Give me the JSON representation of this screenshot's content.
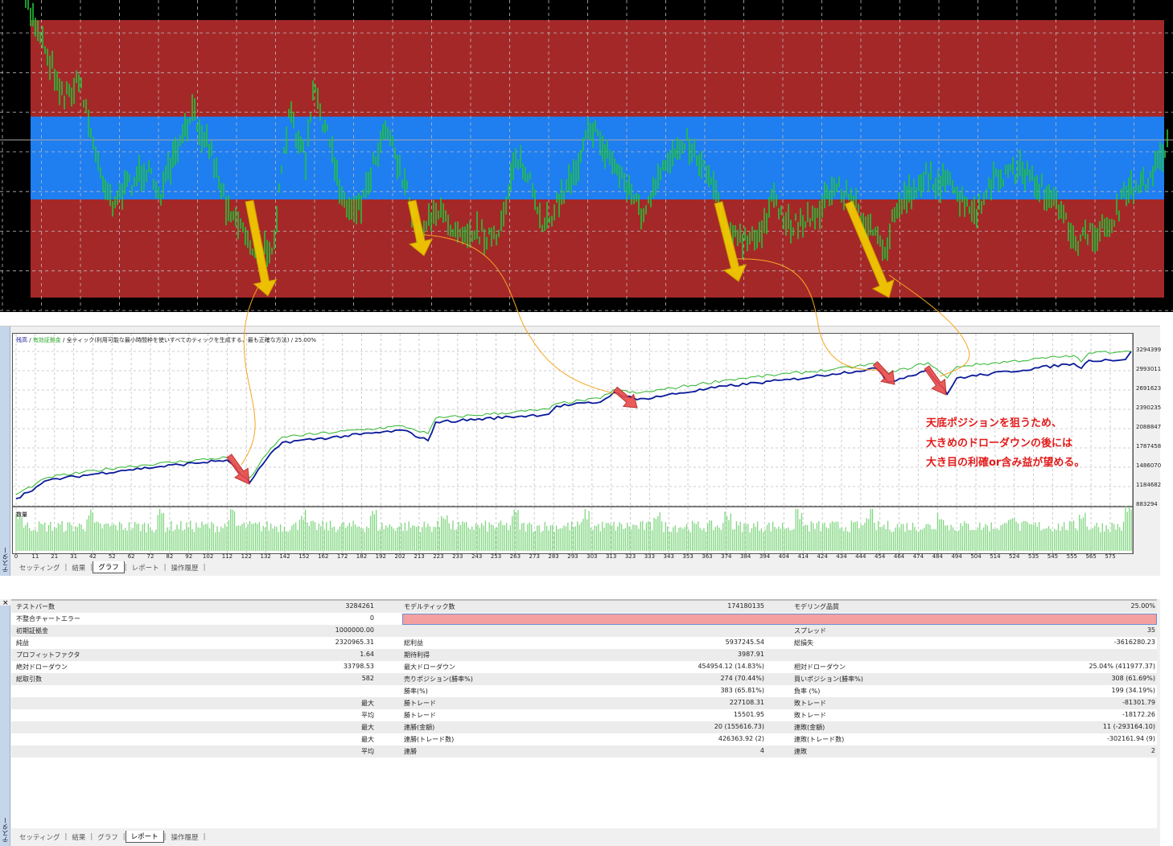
{
  "colors": {
    "price_bg": "#000000",
    "zone_red": "#a52828",
    "zone_blue": "#1f7ef0",
    "price_bars": "#22c43a",
    "balance_line": "#0a1a9a",
    "equity_line": "#2db52d",
    "volume_bars": "#7fd67f",
    "annotation_arrow": "#e03030",
    "annotation_highlight": "#f5d000",
    "connector": "#f5a623",
    "note_text": "#e21a1a"
  },
  "graph_panel": {
    "legend": {
      "balance": "残高",
      "sep1": " / ",
      "equity": "有効証拠金",
      "sep2": " / ",
      "model": "全ティック(利用可能な最小時間枠を使いすべてのティックを生成する、最も正確な方法)",
      "sep3": " / ",
      "quality": "25.00%"
    },
    "volume_label": "数量",
    "side_label": "テスター",
    "tabs": [
      {
        "label": "セッティング",
        "active": false
      },
      {
        "label": "結果",
        "active": false
      },
      {
        "label": "グラフ",
        "active": true
      },
      {
        "label": "レポート",
        "active": false
      },
      {
        "label": "操作履歴",
        "active": false
      }
    ]
  },
  "chart_data": {
    "type": "line",
    "xlabel": "",
    "ylabel": "",
    "ylim": [
      883294,
      3294399
    ],
    "xlim": [
      0,
      582
    ],
    "grid": true,
    "legend": "top-left",
    "y_ticks": [
      "3294399",
      "2993011",
      "2691623",
      "2390235",
      "2088847",
      "1787458",
      "1486070",
      "1184682",
      "883294"
    ],
    "x_ticks": [
      "0",
      "11",
      "21",
      "31",
      "42",
      "52",
      "62",
      "72",
      "82",
      "92",
      "102",
      "112",
      "122",
      "132",
      "142",
      "152",
      "162",
      "172",
      "182",
      "192",
      "202",
      "213",
      "223",
      "233",
      "243",
      "253",
      "263",
      "273",
      "283",
      "293",
      "303",
      "313",
      "323",
      "333",
      "343",
      "353",
      "363",
      "374",
      "384",
      "394",
      "404",
      "414",
      "424",
      "434",
      "444",
      "454",
      "464",
      "474",
      "484",
      "494",
      "504",
      "514",
      "524",
      "535",
      "545",
      "555",
      "565",
      "575"
    ],
    "series": [
      {
        "name": "残高",
        "points": [
          [
            0,
            996000
          ],
          [
            17,
            1285000
          ],
          [
            55,
            1436000
          ],
          [
            110,
            1599000
          ],
          [
            122,
            1247000
          ],
          [
            131,
            1624000
          ],
          [
            139,
            1875000
          ],
          [
            202,
            2064000
          ],
          [
            215,
            1900000
          ],
          [
            219,
            2189000
          ],
          [
            278,
            2315000
          ],
          [
            282,
            2440000
          ],
          [
            305,
            2503000
          ],
          [
            312,
            2654000
          ],
          [
            324,
            2541000
          ],
          [
            371,
            2754000
          ],
          [
            404,
            2855000
          ],
          [
            426,
            2943000
          ],
          [
            449,
            3031000
          ],
          [
            455,
            2817000
          ],
          [
            476,
            3005000
          ],
          [
            486,
            2629000
          ],
          [
            491,
            2880000
          ],
          [
            552,
            3106000
          ],
          [
            556,
            3031000
          ],
          [
            560,
            3156000
          ],
          [
            579,
            3169000
          ],
          [
            582,
            3294000
          ]
        ]
      },
      {
        "name": "有効証拠金",
        "points": [
          [
            0,
            1060000
          ],
          [
            17,
            1330000
          ],
          [
            55,
            1490000
          ],
          [
            110,
            1640000
          ],
          [
            122,
            1320000
          ],
          [
            131,
            1700000
          ],
          [
            139,
            1960000
          ],
          [
            202,
            2130000
          ],
          [
            215,
            2010000
          ],
          [
            219,
            2250000
          ],
          [
            278,
            2390000
          ],
          [
            282,
            2480000
          ],
          [
            305,
            2560000
          ],
          [
            312,
            2700000
          ],
          [
            324,
            2640000
          ],
          [
            371,
            2850000
          ],
          [
            404,
            2950000
          ],
          [
            426,
            3010000
          ],
          [
            449,
            3100000
          ],
          [
            455,
            2950000
          ],
          [
            476,
            3120000
          ],
          [
            486,
            2880000
          ],
          [
            491,
            3060000
          ],
          [
            552,
            3230000
          ],
          [
            556,
            3130000
          ],
          [
            560,
            3270000
          ],
          [
            579,
            3300000
          ],
          [
            582,
            3294000
          ]
        ]
      }
    ]
  },
  "annotation": {
    "lines": [
      "天底ポジションを狙うため、",
      "大きめのドローダウンの後には",
      "大き目の利確or含み益が望める。"
    ]
  },
  "report_panel": {
    "side_label": "テスター",
    "rows": [
      {
        "l1": "テストバー数",
        "v1": "3284261",
        "l2": "モデルティック数",
        "v2": "174180135",
        "l3": "モデリング品質",
        "v3": "25.00%"
      },
      {
        "l1": "不整合チャートエラー",
        "v1": "0",
        "l2": "",
        "v2": "",
        "l3": "",
        "v3": "",
        "pink": true
      },
      {
        "l1": "初期証拠金",
        "v1": "1000000.00",
        "l2": "",
        "v2": "",
        "l3": "スプレッド",
        "v3": "35"
      },
      {
        "l1": "純益",
        "v1": "2320965.31",
        "l2": "総利益",
        "v2": "5937245.54",
        "l3": "総損失",
        "v3": "-3616280.23"
      },
      {
        "l1": "プロフィットファクタ",
        "v1": "1.64",
        "l2": "期待利得",
        "v2": "3987.91",
        "l3": "",
        "v3": ""
      },
      {
        "l1": "絶対ドローダウン",
        "v1": "33798.53",
        "l2": "最大ドローダウン",
        "v2": "454954.12 (14.83%)",
        "l3": "相対ドローダウン",
        "v3": "25.04% (411977.37)"
      },
      {
        "l1": "総取引数",
        "v1": "582",
        "l2": "売りポジション(勝率%)",
        "v2": "274 (70.44%)",
        "l3": "買いポジション(勝率%)",
        "v3": "308 (61.69%)"
      },
      {
        "l1": "",
        "v1": "",
        "l2": "勝率(%)",
        "v2": "383 (65.81%)",
        "l3": "負率 (%)",
        "v3": "199 (34.19%)"
      },
      {
        "l1": "",
        "v1": "最大",
        "l2": "勝トレード",
        "v2": "227108.31",
        "l3": "敗トレード",
        "v3": "-81301.79"
      },
      {
        "l1": "",
        "v1": "平均",
        "l2": "勝トレード",
        "v2": "15501.95",
        "l3": "敗トレード",
        "v3": "-18172.26"
      },
      {
        "l1": "",
        "v1": "最大",
        "l2": "連勝(金額)",
        "v2": "20 (155616.73)",
        "l3": "連敗(金額)",
        "v3": "11 (-293164.10)"
      },
      {
        "l1": "",
        "v1": "最大",
        "l2": "連勝(トレード数)",
        "v2": "426363.92 (2)",
        "l3": "連敗(トレード数)",
        "v3": "-302161.94 (9)"
      },
      {
        "l1": "",
        "v1": "平均",
        "l2": "連勝",
        "v2": "4",
        "l3": "連敗",
        "v3": "2"
      }
    ],
    "tabs": [
      {
        "label": "セッティング",
        "active": false
      },
      {
        "label": "結果",
        "active": false
      },
      {
        "label": "グラフ",
        "active": false
      },
      {
        "label": "レポート",
        "active": true
      },
      {
        "label": "操作履歴",
        "active": false
      }
    ],
    "close_label": "×"
  }
}
